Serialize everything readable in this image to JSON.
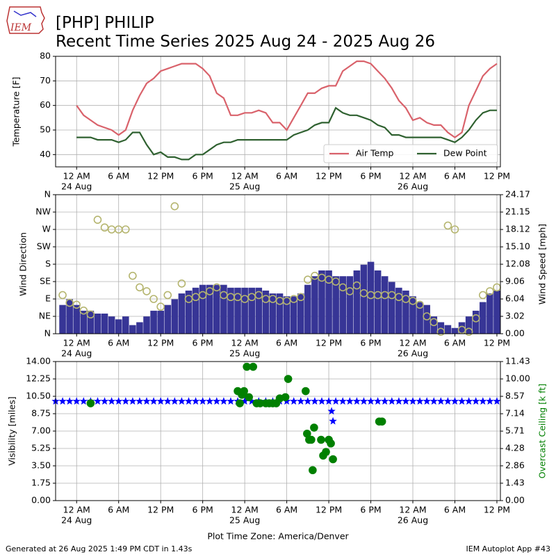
{
  "title": "[PHP] PHILIP",
  "subtitle": "Recent Time Series 2025 Aug 24 - 2025 Aug 26",
  "logo_text": "IEM",
  "xlabel": "Plot Time Zone: America/Denver",
  "footer_left": "Generated at 26 Aug 2025 1:49 PM CDT in 1.43s",
  "footer_right": "IEM Autoplot App #43",
  "chart_data": [
    {
      "type": "line",
      "ylabel": "Temperature [F]",
      "grid": true,
      "legend": "lower right",
      "xlim": [
        -3,
        60.5
      ],
      "xticks": [
        {
          "value": 0,
          "label": "12 AM",
          "date": "24 Aug"
        },
        {
          "value": 6,
          "label": "6 AM"
        },
        {
          "value": 12,
          "label": "12 PM"
        },
        {
          "value": 18,
          "label": "6 PM"
        },
        {
          "value": 24,
          "label": "12 AM",
          "date": "25 Aug"
        },
        {
          "value": 30,
          "label": "6 AM"
        },
        {
          "value": 36,
          "label": "12 PM"
        },
        {
          "value": 42,
          "label": "6 PM"
        },
        {
          "value": 48,
          "label": "12 AM",
          "date": "26 Aug"
        },
        {
          "value": 54,
          "label": "6 AM"
        },
        {
          "value": 60,
          "label": "12 PM"
        }
      ],
      "ylim": [
        35,
        80
      ],
      "yticks": [
        40,
        50,
        60,
        70,
        80
      ],
      "x": [
        0,
        1,
        2,
        3,
        4,
        5,
        6,
        7,
        8,
        9,
        10,
        11,
        12,
        13,
        14,
        15,
        16,
        17,
        18,
        19,
        20,
        21,
        22,
        23,
        24,
        25,
        26,
        27,
        28,
        29,
        30,
        31,
        32,
        33,
        34,
        35,
        36,
        37,
        38,
        39,
        40,
        41,
        42,
        43,
        44,
        45,
        46,
        47,
        48,
        49,
        50,
        51,
        52,
        53,
        54,
        55,
        56,
        57,
        58,
        59,
        60
      ],
      "series": [
        {
          "name": "Air Temp",
          "color": "#d9626b",
          "values": [
            60,
            56,
            54,
            52,
            51,
            50,
            48,
            50,
            58,
            64,
            69,
            71,
            74,
            75,
            76,
            77,
            77,
            77,
            75,
            72,
            65,
            63,
            56,
            56,
            57,
            57,
            58,
            57,
            53,
            53,
            50,
            55,
            60,
            65,
            65,
            67,
            68,
            68,
            74,
            76,
            78,
            78,
            77,
            74,
            71,
            67,
            62,
            59,
            54,
            55,
            53,
            52,
            52,
            49,
            47,
            49,
            60,
            66,
            72,
            75,
            77
          ]
        },
        {
          "name": "Dew Point",
          "color": "#2f6130",
          "values": [
            47,
            47,
            47,
            46,
            46,
            46,
            45,
            46,
            49,
            49,
            44,
            40,
            41,
            39,
            39,
            38,
            38,
            40,
            40,
            42,
            44,
            45,
            45,
            46,
            46,
            46,
            46,
            46,
            46,
            46,
            46,
            48,
            49,
            50,
            52,
            53,
            53,
            59,
            57,
            56,
            56,
            55,
            54,
            52,
            51,
            48,
            48,
            47,
            47,
            47,
            47,
            47,
            47,
            46,
            45,
            47,
            50,
            54,
            57,
            58,
            58
          ]
        }
      ]
    },
    {
      "type": "bar",
      "ylabel": "Wind Direction",
      "y2label": "Wind Speed [mph]",
      "grid": true,
      "xlim": [
        -3,
        60.5
      ],
      "xticks": [
        {
          "value": 0,
          "label": "12 AM",
          "date": "24 Aug"
        },
        {
          "value": 6,
          "label": "6 AM"
        },
        {
          "value": 12,
          "label": "12 PM"
        },
        {
          "value": 18,
          "label": "6 PM"
        },
        {
          "value": 24,
          "label": "12 AM",
          "date": "25 Aug"
        },
        {
          "value": 30,
          "label": "6 AM"
        },
        {
          "value": 36,
          "label": "12 PM"
        },
        {
          "value": 42,
          "label": "6 PM"
        },
        {
          "value": 48,
          "label": "12 AM",
          "date": "26 Aug"
        },
        {
          "value": 54,
          "label": "6 AM"
        },
        {
          "value": 60,
          "label": "12 PM"
        }
      ],
      "ylim": [
        0,
        360
      ],
      "yticks": [
        {
          "value": 0,
          "label": "N"
        },
        {
          "value": 45,
          "label": "NE"
        },
        {
          "value": 90,
          "label": "E"
        },
        {
          "value": 135,
          "label": "SE"
        },
        {
          "value": 180,
          "label": "S"
        },
        {
          "value": 225,
          "label": "SW"
        },
        {
          "value": 270,
          "label": "W"
        },
        {
          "value": 315,
          "label": "NW"
        },
        {
          "value": 360,
          "label": "N"
        }
      ],
      "y2lim": [
        0,
        24.17
      ],
      "y2ticks": [
        {
          "value": 0,
          "label": "0.00"
        },
        3.02,
        6.04,
        9.06,
        12.08,
        {
          "value": 15.1,
          "label": "15.10"
        },
        18.12,
        21.15,
        24.17
      ],
      "series": [
        {
          "marker": "bar",
          "axis": "y2",
          "color": "#373596",
          "x": [
            -2,
            -1,
            0,
            1,
            2,
            3,
            4,
            5,
            6,
            7,
            8,
            9,
            10,
            11,
            12,
            13,
            14,
            15,
            16,
            17,
            18,
            19,
            20,
            21,
            22,
            23,
            24,
            25,
            26,
            27,
            28,
            29,
            30,
            31,
            32,
            33,
            34,
            35,
            36,
            37,
            38,
            39,
            40,
            41,
            42,
            43,
            44,
            45,
            46,
            47,
            48,
            49,
            50,
            51,
            52,
            53,
            54,
            55,
            56,
            57,
            58,
            59,
            60
          ],
          "values": [
            5,
            6,
            5,
            4,
            4,
            3.5,
            3.5,
            3,
            2.5,
            3,
            1.5,
            2,
            3,
            4,
            4,
            5,
            6,
            7,
            7.5,
            8,
            8.5,
            8.5,
            8.5,
            8.5,
            8,
            8,
            8,
            8,
            8,
            7.5,
            7,
            7,
            6.5,
            6.5,
            7,
            8.5,
            10,
            11,
            11,
            10,
            10,
            10,
            11,
            12,
            12.5,
            11,
            10,
            9,
            8,
            7.5,
            6.5,
            5.5,
            5,
            3,
            2,
            1.5,
            1,
            2,
            3,
            4,
            5.5,
            7,
            7.5
          ]
        },
        {
          "marker": "circle",
          "axis": "y",
          "color": "#b5b56f",
          "x": [
            -2,
            -1,
            0,
            1,
            2,
            3,
            4,
            5,
            6,
            7,
            8,
            9,
            10,
            11,
            12,
            13,
            14,
            15,
            16,
            17,
            18,
            19,
            20,
            21,
            22,
            23,
            24,
            25,
            26,
            27,
            28,
            29,
            30,
            31,
            32,
            33,
            34,
            35,
            36,
            37,
            38,
            39,
            40,
            41,
            42,
            43,
            44,
            45,
            46,
            47,
            48,
            49,
            50,
            51,
            52,
            53,
            54,
            55,
            56,
            57,
            58,
            59,
            60
          ],
          "values": [
            100,
            80,
            75,
            60,
            50,
            295,
            275,
            270,
            270,
            270,
            150,
            120,
            110,
            90,
            70,
            100,
            330,
            130,
            90,
            95,
            100,
            110,
            120,
            100,
            95,
            95,
            90,
            95,
            100,
            90,
            90,
            85,
            85,
            90,
            95,
            140,
            150,
            145,
            140,
            135,
            120,
            110,
            125,
            105,
            100,
            100,
            100,
            100,
            95,
            90,
            85,
            75,
            45,
            30,
            5,
            280,
            270,
            10,
            5,
            40,
            100,
            110,
            120
          ]
        }
      ]
    },
    {
      "type": "scatter",
      "ylabel": "Visibility [miles]",
      "y2label": "Overcast Ceiling [k ft]",
      "y2color": "#008000",
      "grid": true,
      "xlim": [
        -3,
        60.5
      ],
      "xticks": [
        {
          "value": 0,
          "label": "12 AM",
          "date": "24 Aug"
        },
        {
          "value": 6,
          "label": "6 AM"
        },
        {
          "value": 12,
          "label": "12 PM"
        },
        {
          "value": 18,
          "label": "6 PM"
        },
        {
          "value": 24,
          "label": "12 AM",
          "date": "25 Aug"
        },
        {
          "value": 30,
          "label": "6 AM"
        },
        {
          "value": 36,
          "label": "12 PM"
        },
        {
          "value": 42,
          "label": "6 PM"
        },
        {
          "value": 48,
          "label": "12 AM",
          "date": "26 Aug"
        },
        {
          "value": 54,
          "label": "6 AM"
        },
        {
          "value": 60,
          "label": "12 PM"
        }
      ],
      "ylim": [
        0,
        14
      ],
      "yticks": [
        {
          "value": 0,
          "label": "0.00"
        },
        1.75,
        {
          "value": 3.5,
          "label": "3.50"
        },
        5.25,
        {
          "value": 7,
          "label": "7.00"
        },
        8.75,
        {
          "value": 10.5,
          "label": "10.50"
        },
        12.25,
        {
          "value": 14,
          "label": "14.00"
        }
      ],
      "y2lim": [
        0,
        11.43
      ],
      "y2ticks": [
        {
          "value": 0,
          "label": "0.00"
        },
        1.43,
        2.86,
        4.28,
        5.71,
        7.14,
        8.57,
        {
          "value": 10,
          "label": "10.00"
        },
        11.43
      ],
      "series": [
        {
          "marker": "star",
          "axis": "y",
          "color": "#0000ff",
          "x": [
            -3,
            -2,
            -1,
            0,
            1,
            2,
            3,
            4,
            5,
            6,
            7,
            8,
            9,
            10,
            11,
            12,
            13,
            14,
            15,
            16,
            17,
            18,
            19,
            20,
            21,
            22,
            23,
            24,
            25,
            26,
            27,
            28,
            29,
            30,
            31,
            32,
            33,
            34,
            35,
            36,
            36.4,
            36.6,
            37,
            38,
            39,
            40,
            41,
            42,
            43,
            44,
            45,
            46,
            47,
            48,
            49,
            50,
            51,
            52,
            53,
            54,
            55,
            56,
            57,
            58,
            59,
            60
          ],
          "values": [
            10,
            10,
            10,
            10,
            10,
            10,
            10,
            10,
            10,
            10,
            10,
            10,
            10,
            10,
            10,
            10,
            10,
            10,
            10,
            10,
            10,
            10,
            10,
            10,
            10,
            10,
            10,
            10,
            10,
            10,
            10,
            10,
            10,
            10,
            10,
            10,
            10,
            10,
            10,
            10,
            9,
            8,
            10,
            10,
            10,
            10,
            10,
            10,
            10,
            10,
            10,
            10,
            10,
            10,
            10,
            10,
            10,
            10,
            10,
            10,
            10,
            10,
            10,
            10,
            10,
            10
          ]
        },
        {
          "marker": "circle",
          "axis": "y2",
          "color": "#008000",
          "x": [
            2,
            23.0,
            23.3,
            23.6,
            23.9,
            24.3,
            24.6,
            25.2,
            25.7,
            26.2,
            27.0,
            27.5,
            28.0,
            28.5,
            29.0,
            29.8,
            30.2,
            32.7,
            32.9,
            33.2,
            33.5,
            33.7,
            33.9,
            34.9,
            35.2,
            35.6,
            36.0,
            36.3,
            36.6,
            43.2,
            43.6
          ],
          "values": [
            8.0,
            9.0,
            8.0,
            8.7,
            9.0,
            11.0,
            8.5,
            11.0,
            8.0,
            8.0,
            8.0,
            8.0,
            8.0,
            8.0,
            8.4,
            8.5,
            10.0,
            9.0,
            5.5,
            5.0,
            5.0,
            2.5,
            6.0,
            5.0,
            3.7,
            4.0,
            5.0,
            4.7,
            3.4,
            6.5,
            6.5
          ]
        }
      ]
    }
  ]
}
